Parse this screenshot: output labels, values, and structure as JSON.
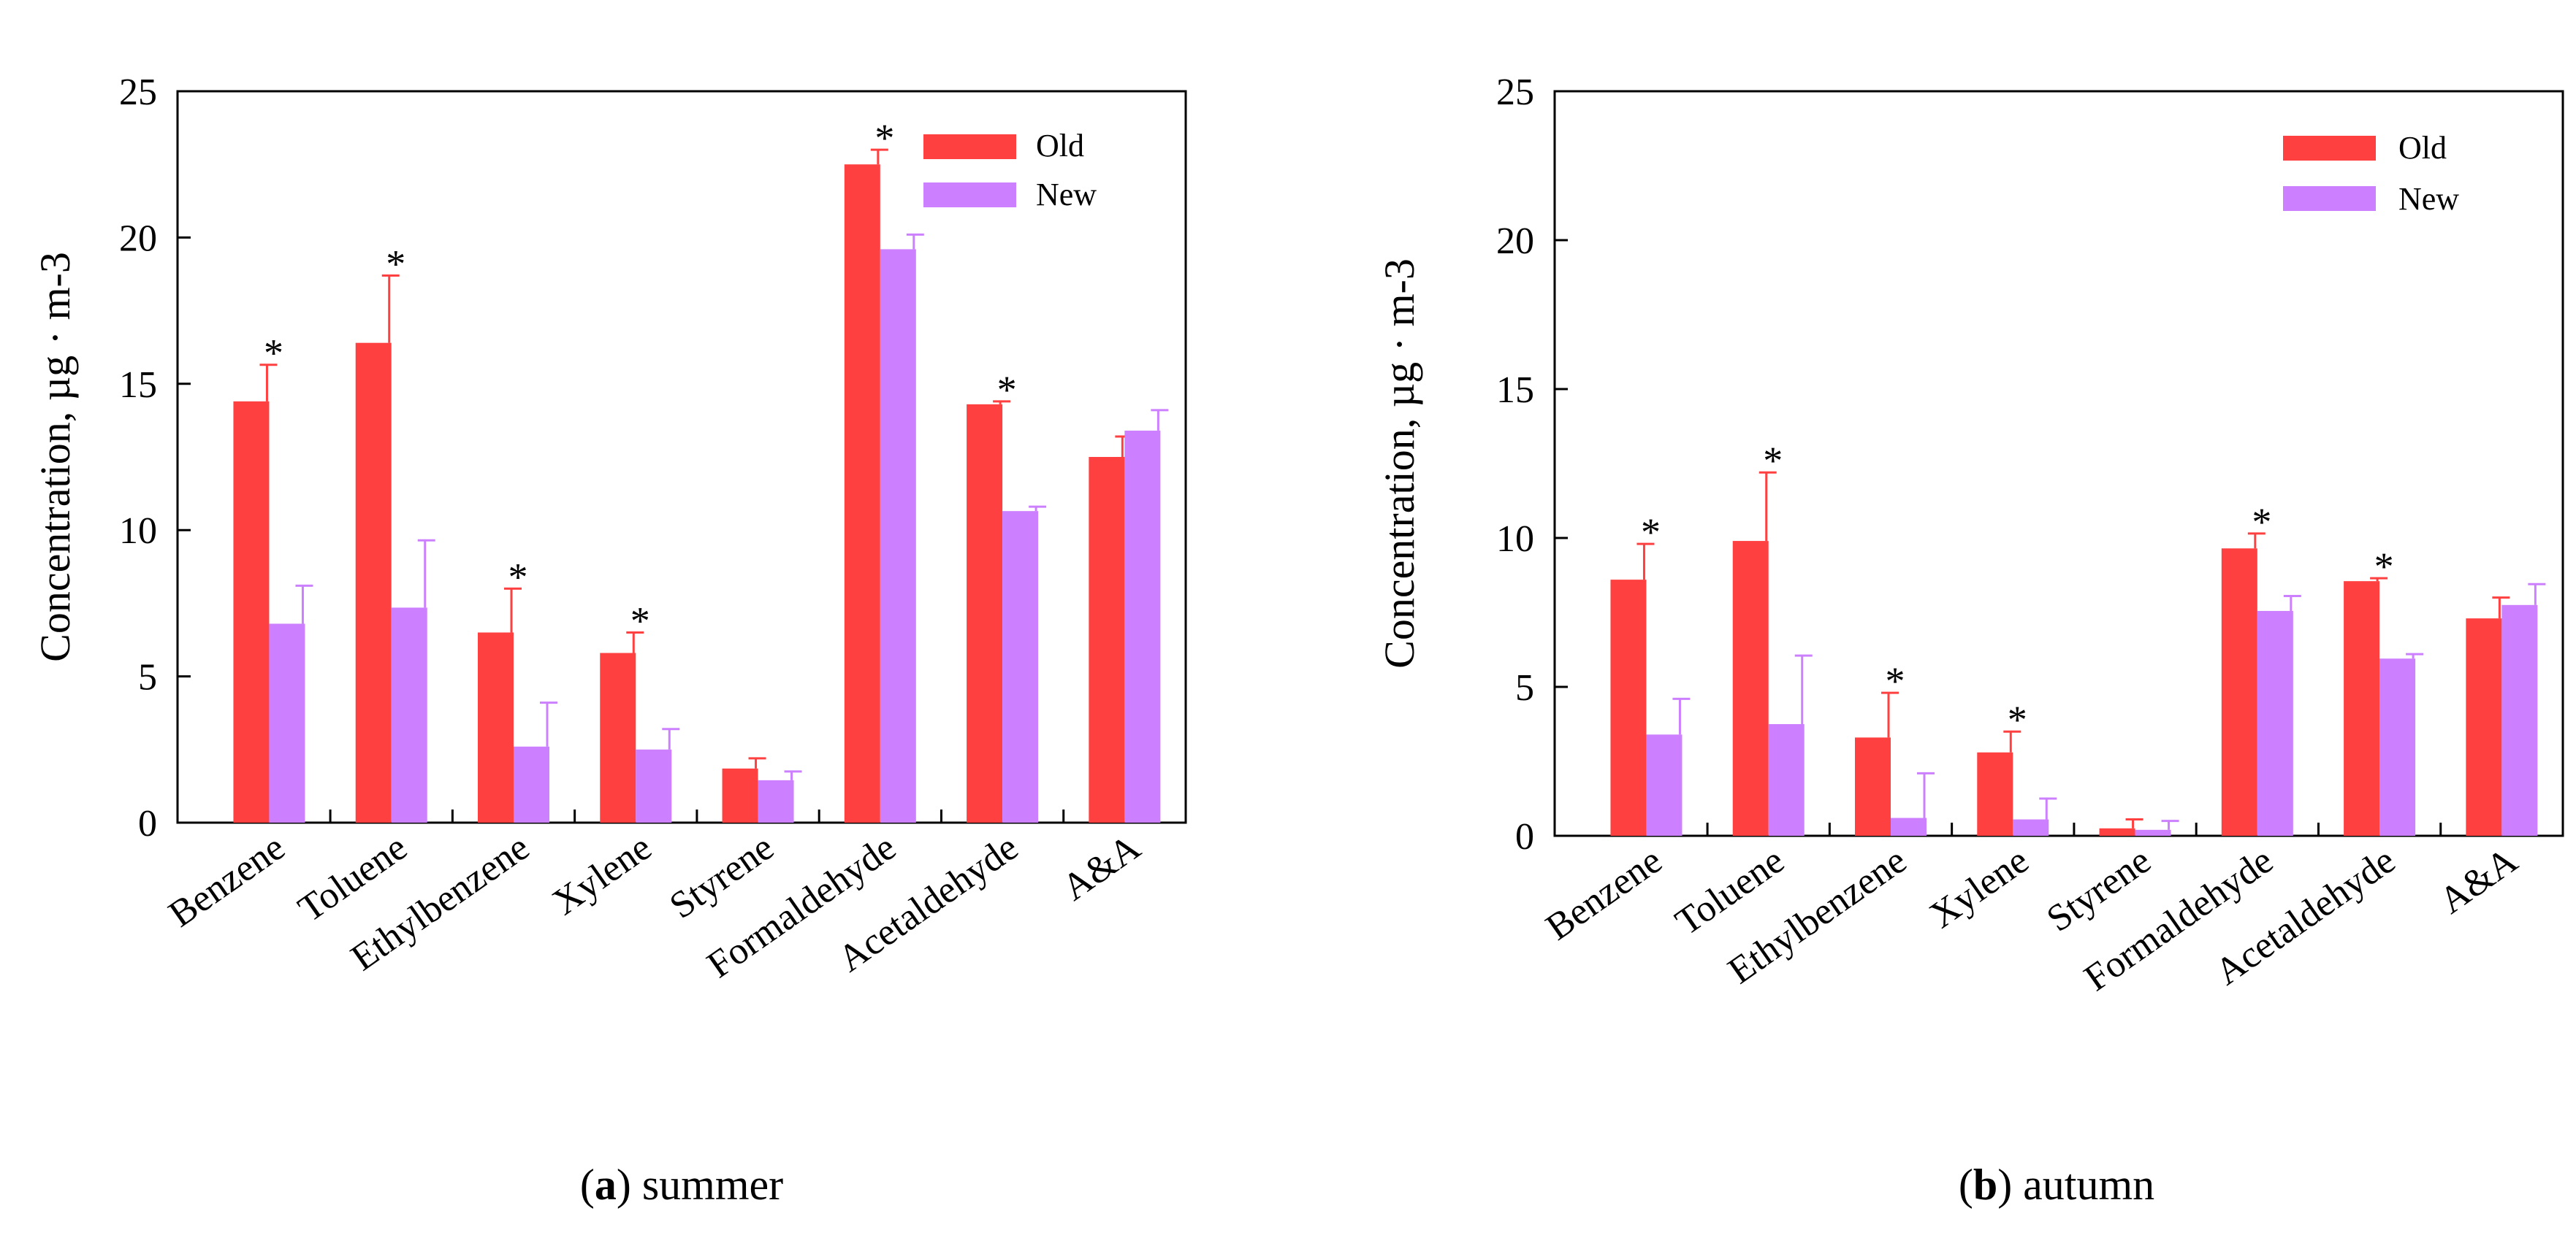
{
  "colors": {
    "old": "#ff4040",
    "new": "#cc80ff",
    "axis": "#000000"
  },
  "chart_data": [
    {
      "type": "bar",
      "caption_letter": "a",
      "caption_text": "summer",
      "ylabel": "Concentration, µg · m-3",
      "ylim": [
        0,
        25
      ],
      "yticks": [
        0,
        5,
        10,
        15,
        20,
        25
      ],
      "categories": [
        "Benzene",
        "Toluene",
        "Ethylbenzene",
        "Xylene",
        "Styrene",
        "Formaldehyde",
        "Acetaldehyde",
        "A&A"
      ],
      "legend_position": "top-right",
      "series": [
        {
          "name": "Old",
          "values": [
            14.4,
            16.4,
            6.5,
            5.8,
            1.85,
            22.5,
            14.3,
            12.5
          ],
          "errors": [
            1.25,
            2.3,
            1.5,
            0.7,
            0.35,
            0.5,
            0.1,
            0.7
          ]
        },
        {
          "name": "New",
          "values": [
            6.8,
            7.35,
            2.6,
            2.5,
            1.45,
            19.6,
            10.65,
            13.4
          ],
          "errors": [
            1.3,
            2.3,
            1.5,
            0.7,
            0.3,
            0.5,
            0.15,
            0.7
          ]
        }
      ],
      "significant": [
        true,
        true,
        true,
        true,
        false,
        true,
        true,
        false
      ],
      "significance_marker": "*"
    },
    {
      "type": "bar",
      "caption_letter": "b",
      "caption_text": "autumn",
      "ylabel": "Concentration, µg · m-3",
      "ylim": [
        0,
        25
      ],
      "yticks": [
        0,
        5,
        10,
        15,
        20,
        25
      ],
      "categories": [
        "Benzene",
        "Toluene",
        "Ethylbenzene",
        "Xylene",
        "Styrene",
        "Formaldehyde",
        "Acetaldehyde",
        "A&A"
      ],
      "legend_position": "top-right",
      "series": [
        {
          "name": "Old",
          "values": [
            8.6,
            9.9,
            3.3,
            2.8,
            0.25,
            9.65,
            8.55,
            7.3
          ],
          "errors": [
            1.2,
            2.3,
            1.5,
            0.7,
            0.3,
            0.5,
            0.1,
            0.7
          ]
        },
        {
          "name": "New",
          "values": [
            3.4,
            3.75,
            0.6,
            0.55,
            0.2,
            7.55,
            5.95,
            7.75
          ],
          "errors": [
            1.2,
            2.3,
            1.5,
            0.7,
            0.3,
            0.5,
            0.15,
            0.7
          ]
        }
      ],
      "significant": [
        true,
        true,
        true,
        true,
        false,
        true,
        true,
        false
      ],
      "significance_marker": "*"
    }
  ]
}
